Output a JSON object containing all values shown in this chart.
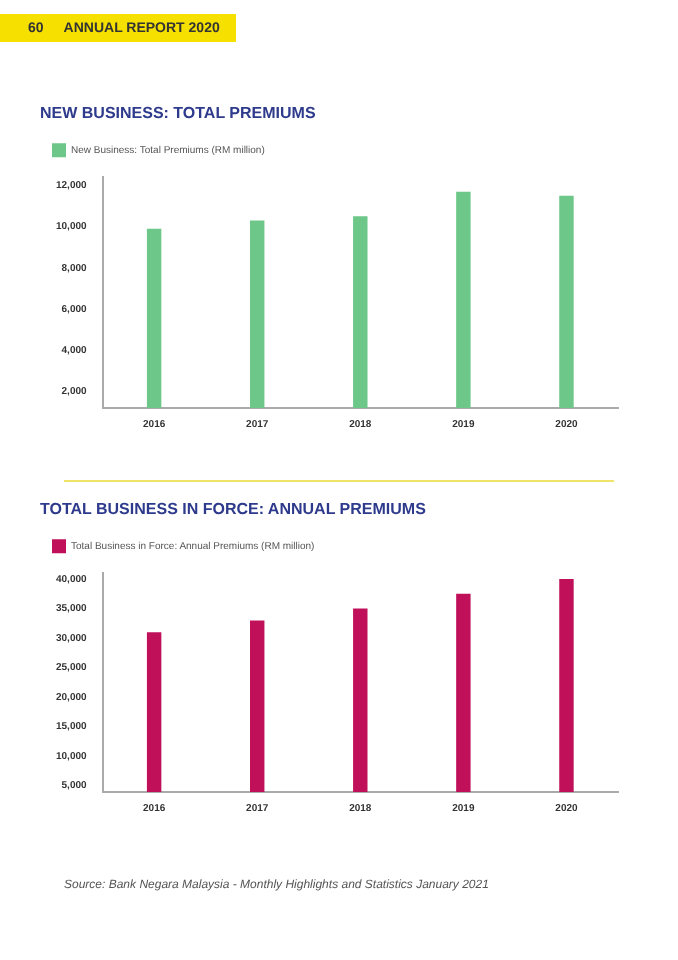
{
  "chart_data": [
    {
      "type": "bar",
      "title": "NEW BUSINESS: TOTAL PREMIUMS",
      "categories": [
        "2016",
        "2017",
        "2018",
        "2019",
        "2020"
      ],
      "series": [
        {
          "name": "New Business: Total Premiums (RM million)",
          "color": "#6cc788",
          "values": [
            9900,
            10300,
            10500,
            11700,
            11500
          ]
        }
      ],
      "ylim": [
        1200,
        12400
      ],
      "yticks": [
        {
          "value": 2000,
          "label": "2,000"
        },
        {
          "value": 4000,
          "label": "4,000"
        },
        {
          "value": 6000,
          "label": "6,000"
        },
        {
          "value": 8000,
          "label": "8,000"
        },
        {
          "value": 10000,
          "label": "10,000"
        },
        {
          "value": 12000,
          "label": "12,000"
        }
      ],
      "grid": false,
      "legend": "top left",
      "annotations": [
        "60",
        "ANNUAL REPORT 2020"
      ]
    },
    {
      "type": "bar",
      "title": "TOTAL BUSINESS IN FORCE: ANNUAL PREMIUMS",
      "categories": [
        "2016",
        "2017",
        "2018",
        "2019",
        "2020"
      ],
      "series": [
        {
          "name": "Total Business in Force: Annual Premiums (RM million)",
          "color": "#c0105a",
          "values": [
            31000,
            33000,
            35000,
            37500,
            40000
          ]
        }
      ],
      "ylim": [
        3900,
        41000
      ],
      "yticks": [
        {
          "value": 5000,
          "label": "5,000"
        },
        {
          "value": 10000,
          "label": "10,000"
        },
        {
          "value": 15000,
          "label": "15,000"
        },
        {
          "value": 20000,
          "label": "20,000"
        },
        {
          "value": 25000,
          "label": "25,000"
        },
        {
          "value": 30000,
          "label": "30,000"
        },
        {
          "value": 35000,
          "label": "35,000"
        },
        {
          "value": 40000,
          "label": "40,000"
        }
      ],
      "grid": false,
      "legend": "top left",
      "annotations": [
        "Source: Bank Negara Malaysia - Monthly Highlights and Statistics January 2021"
      ]
    }
  ]
}
